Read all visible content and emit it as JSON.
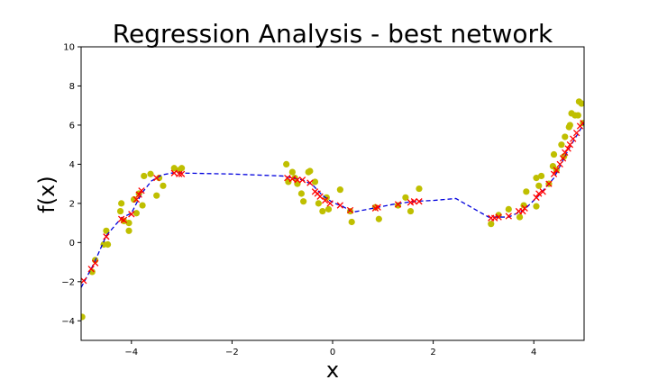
{
  "chart_data": {
    "type": "scatter",
    "title": "Regression Analysis - best network",
    "xlabel": "x",
    "ylabel": "f(x)",
    "xlim": [
      -5,
      5
    ],
    "ylim": [
      -5,
      10
    ],
    "xticks": [
      -4,
      -2,
      0,
      2,
      4
    ],
    "yticks": [
      -4,
      -2,
      0,
      2,
      4,
      6,
      8,
      10
    ],
    "grid": false,
    "series": [
      {
        "kind": "points",
        "color": "#bfbf00",
        "marker": "circle",
        "points": [
          [
            -4.98,
            -3.8
          ],
          [
            -4.78,
            -1.5
          ],
          [
            -4.72,
            -0.9
          ],
          [
            -4.55,
            -0.1
          ],
          [
            -4.5,
            0.6
          ],
          [
            -4.47,
            -0.1
          ],
          [
            -4.22,
            1.6
          ],
          [
            -4.2,
            2.0
          ],
          [
            -4.15,
            1.1
          ],
          [
            -4.05,
            0.6
          ],
          [
            -4.05,
            1.0
          ],
          [
            -3.95,
            2.2
          ],
          [
            -3.9,
            1.5
          ],
          [
            -3.85,
            2.5
          ],
          [
            -3.78,
            1.9
          ],
          [
            -3.75,
            3.4
          ],
          [
            -3.62,
            3.5
          ],
          [
            -3.5,
            2.4
          ],
          [
            -3.45,
            3.3
          ],
          [
            -3.37,
            2.9
          ],
          [
            -3.15,
            3.8
          ],
          [
            -3.05,
            3.7
          ],
          [
            -3.0,
            3.8
          ],
          [
            -0.92,
            4.0
          ],
          [
            -0.88,
            3.1
          ],
          [
            -0.8,
            3.6
          ],
          [
            -0.75,
            3.3
          ],
          [
            -0.7,
            3.0
          ],
          [
            -0.62,
            2.5
          ],
          [
            -0.58,
            2.1
          ],
          [
            -0.48,
            3.6
          ],
          [
            -0.45,
            3.65
          ],
          [
            -0.35,
            3.1
          ],
          [
            -0.28,
            2.0
          ],
          [
            -0.2,
            1.6
          ],
          [
            -0.12,
            2.3
          ],
          [
            -0.08,
            1.7
          ],
          [
            0.15,
            2.7
          ],
          [
            0.35,
            1.6
          ],
          [
            0.38,
            1.05
          ],
          [
            0.85,
            1.8
          ],
          [
            0.92,
            1.2
          ],
          [
            1.3,
            1.9
          ],
          [
            1.45,
            2.3
          ],
          [
            1.55,
            1.6
          ],
          [
            1.72,
            2.75
          ],
          [
            3.15,
            0.95
          ],
          [
            3.3,
            1.4
          ],
          [
            3.5,
            1.7
          ],
          [
            3.72,
            1.3
          ],
          [
            3.8,
            1.9
          ],
          [
            3.85,
            2.6
          ],
          [
            4.05,
            3.3
          ],
          [
            4.05,
            1.85
          ],
          [
            4.1,
            2.9
          ],
          [
            4.15,
            3.4
          ],
          [
            4.3,
            3.0
          ],
          [
            4.38,
            3.9
          ],
          [
            4.4,
            4.5
          ],
          [
            4.45,
            3.7
          ],
          [
            4.55,
            5.0
          ],
          [
            4.6,
            4.4
          ],
          [
            4.62,
            5.4
          ],
          [
            4.7,
            5.9
          ],
          [
            4.72,
            6.0
          ],
          [
            4.75,
            6.6
          ],
          [
            4.82,
            6.5
          ],
          [
            4.88,
            6.5
          ],
          [
            4.9,
            7.2
          ],
          [
            4.95,
            7.1
          ],
          [
            4.98,
            6.1
          ]
        ]
      },
      {
        "kind": "line",
        "color": "#0000dd",
        "dash": true,
        "points": [
          [
            -5.0,
            -2.3
          ],
          [
            -4.75,
            -1.1
          ],
          [
            -4.5,
            0.35
          ],
          [
            -4.2,
            1.25
          ],
          [
            -4.0,
            1.5
          ],
          [
            -3.8,
            2.5
          ],
          [
            -3.6,
            3.15
          ],
          [
            -3.4,
            3.45
          ],
          [
            -3.2,
            3.55
          ],
          [
            -3.0,
            3.55
          ],
          [
            -2.0,
            3.5
          ],
          [
            -1.0,
            3.4
          ],
          [
            -0.8,
            3.3
          ],
          [
            -0.6,
            3.2
          ],
          [
            -0.4,
            2.95
          ],
          [
            -0.2,
            2.4
          ],
          [
            0.0,
            2.05
          ],
          [
            0.2,
            1.85
          ],
          [
            0.4,
            1.55
          ],
          [
            0.8,
            1.75
          ],
          [
            1.2,
            1.95
          ],
          [
            1.6,
            2.1
          ],
          [
            2.0,
            2.15
          ],
          [
            2.45,
            2.25
          ],
          [
            3.1,
            1.3
          ],
          [
            3.5,
            1.3
          ],
          [
            3.8,
            1.65
          ],
          [
            4.1,
            2.4
          ],
          [
            4.4,
            3.3
          ],
          [
            4.7,
            4.8
          ],
          [
            5.0,
            6.1
          ]
        ]
      },
      {
        "kind": "markers",
        "color": "#ff0000",
        "marker": "x",
        "points": [
          [
            -4.95,
            -1.95
          ],
          [
            -4.8,
            -1.35
          ],
          [
            -4.72,
            -1.05
          ],
          [
            -4.5,
            0.3
          ],
          [
            -4.2,
            1.2
          ],
          [
            -4.15,
            1.15
          ],
          [
            -4.0,
            1.45
          ],
          [
            -3.9,
            2.2
          ],
          [
            -3.85,
            2.45
          ],
          [
            -3.8,
            2.65
          ],
          [
            -3.5,
            3.3
          ],
          [
            -3.15,
            3.55
          ],
          [
            -3.05,
            3.5
          ],
          [
            -3.0,
            3.5
          ],
          [
            -0.9,
            3.3
          ],
          [
            -0.8,
            3.25
          ],
          [
            -0.7,
            3.2
          ],
          [
            -0.6,
            3.2
          ],
          [
            -0.45,
            3.05
          ],
          [
            -0.35,
            2.6
          ],
          [
            -0.3,
            2.5
          ],
          [
            -0.25,
            2.35
          ],
          [
            -0.15,
            2.15
          ],
          [
            -0.05,
            2.0
          ],
          [
            0.15,
            1.9
          ],
          [
            0.35,
            1.65
          ],
          [
            0.85,
            1.75
          ],
          [
            0.9,
            1.8
          ],
          [
            1.3,
            1.95
          ],
          [
            1.55,
            2.05
          ],
          [
            1.62,
            2.1
          ],
          [
            1.72,
            2.1
          ],
          [
            3.15,
            1.25
          ],
          [
            3.22,
            1.25
          ],
          [
            3.3,
            1.3
          ],
          [
            3.5,
            1.35
          ],
          [
            3.7,
            1.6
          ],
          [
            3.78,
            1.6
          ],
          [
            3.82,
            1.75
          ],
          [
            4.05,
            2.3
          ],
          [
            4.1,
            2.5
          ],
          [
            4.18,
            2.6
          ],
          [
            4.3,
            3.0
          ],
          [
            4.4,
            3.5
          ],
          [
            4.45,
            3.7
          ],
          [
            4.52,
            4.0
          ],
          [
            4.58,
            4.3
          ],
          [
            4.62,
            4.6
          ],
          [
            4.68,
            4.8
          ],
          [
            4.72,
            5.0
          ],
          [
            4.78,
            5.3
          ],
          [
            4.85,
            5.6
          ],
          [
            4.92,
            5.95
          ],
          [
            4.98,
            6.1
          ]
        ]
      }
    ]
  }
}
